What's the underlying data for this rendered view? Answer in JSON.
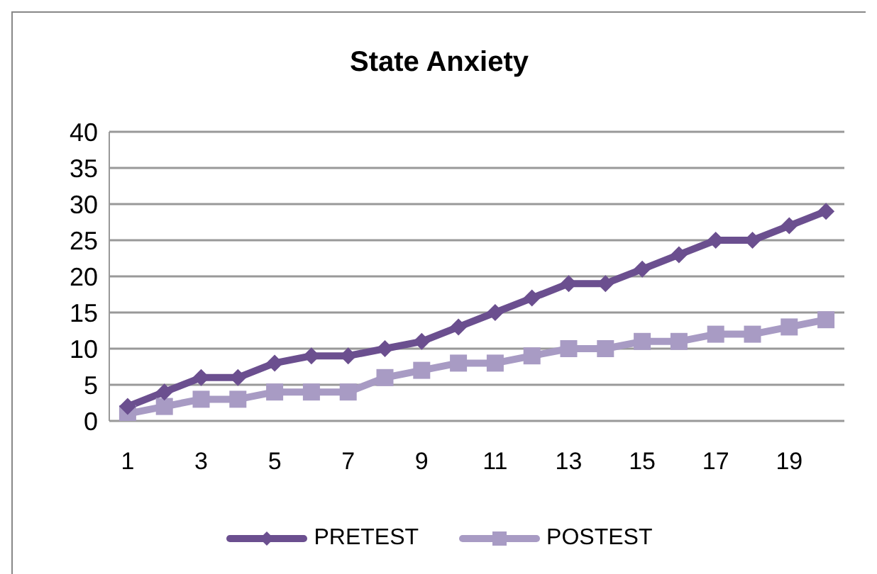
{
  "chart_data": {
    "type": "line",
    "title": "State Anxiety",
    "x": [
      1,
      2,
      3,
      4,
      5,
      6,
      7,
      8,
      9,
      10,
      11,
      12,
      13,
      14,
      15,
      16,
      17,
      18,
      19,
      20
    ],
    "series": [
      {
        "name": "PRETEST",
        "color": "#6b4f8f",
        "marker": "diamond",
        "values": [
          2,
          4,
          6,
          6,
          8,
          9,
          9,
          10,
          11,
          13,
          15,
          17,
          19,
          19,
          21,
          23,
          25,
          25,
          27,
          29
        ]
      },
      {
        "name": "POSTEST",
        "color": "#a89bc4",
        "marker": "square",
        "values": [
          1,
          2,
          3,
          3,
          4,
          4,
          4,
          6,
          7,
          8,
          8,
          9,
          10,
          10,
          11,
          11,
          12,
          12,
          13,
          14
        ]
      }
    ],
    "xlim": [
      0.5,
      20.5
    ],
    "xticks": [
      1,
      3,
      5,
      7,
      9,
      11,
      13,
      15,
      17,
      19
    ],
    "ylim": [
      0,
      40
    ],
    "yticks": [
      0,
      5,
      10,
      15,
      20,
      25,
      30,
      35,
      40
    ],
    "grid": "y",
    "legend": "bottom"
  }
}
